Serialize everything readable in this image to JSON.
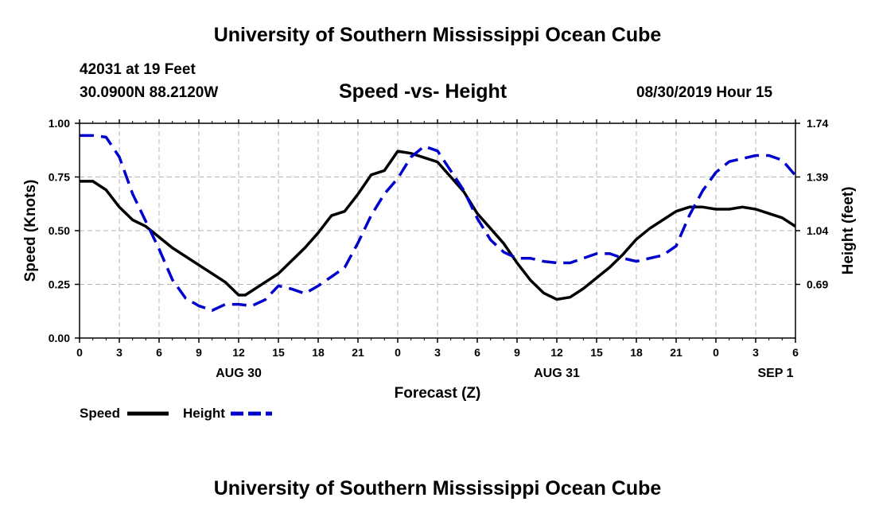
{
  "header": {
    "title": "University of Southern Mississippi Ocean Cube",
    "station": "42031 at 19 Feet",
    "coordinates": "30.0900N 88.2120W",
    "plot_title": "Speed -vs- Height",
    "datetime": "08/30/2019 Hour 15"
  },
  "footer": {
    "title": "University of Southern Mississippi Ocean Cube"
  },
  "colors": {
    "speed": "#000000",
    "height": "#0000cc",
    "grid": "#b4b4b4"
  },
  "chart_data": {
    "type": "line",
    "title": "Speed -vs- Height",
    "xlabel": "Forecast (Z)",
    "ylabel": "Speed (Knots)",
    "y2label": "Height (feet)",
    "xlim": [
      0,
      54
    ],
    "ylim": [
      0,
      1
    ],
    "y2lim": [
      0.34,
      1.74
    ],
    "x_ticks": [
      0,
      3,
      6,
      9,
      12,
      15,
      18,
      21,
      24,
      27,
      30,
      33,
      36,
      39,
      42,
      45,
      48,
      51,
      54
    ],
    "x_tick_labels": [
      "0",
      "3",
      "6",
      "9",
      "12",
      "15",
      "18",
      "21",
      "0",
      "3",
      "6",
      "9",
      "12",
      "15",
      "18",
      "21",
      "0",
      "3",
      "6"
    ],
    "date_labels": [
      {
        "x": 12,
        "label": "AUG 30"
      },
      {
        "x": 36,
        "label": "AUG 31"
      },
      {
        "x": 52.5,
        "label": "SEP 1"
      }
    ],
    "y_ticks": [
      0,
      0.25,
      0.5,
      0.75,
      1.0
    ],
    "y_tick_labels": [
      "0.00",
      "0.25",
      "0.50",
      "0.75",
      "1.00"
    ],
    "y2_ticks": [
      0.69,
      1.04,
      1.39,
      1.74
    ],
    "y2_tick_labels": [
      "0.69",
      "1.04",
      "1.39",
      "1.74"
    ],
    "grid": true,
    "series": [
      {
        "name": "Speed",
        "axis": "left",
        "style": "solid",
        "x": [
          0,
          1,
          2,
          3,
          4,
          5,
          6,
          7,
          8,
          9,
          10,
          11,
          12,
          12.5,
          13,
          14,
          15,
          16,
          17,
          18,
          19,
          20,
          21,
          22,
          23,
          24,
          25,
          26,
          27,
          28,
          29,
          30,
          31,
          32,
          33,
          34,
          35,
          36,
          37,
          38,
          39,
          40,
          41,
          42,
          43,
          44,
          45,
          46,
          47,
          48,
          49,
          50,
          51,
          52,
          53,
          54
        ],
        "values": [
          0.73,
          0.73,
          0.69,
          0.61,
          0.55,
          0.52,
          0.47,
          0.42,
          0.38,
          0.34,
          0.3,
          0.26,
          0.2,
          0.2,
          0.22,
          0.26,
          0.3,
          0.36,
          0.42,
          0.49,
          0.57,
          0.59,
          0.67,
          0.76,
          0.78,
          0.87,
          0.86,
          0.84,
          0.82,
          0.75,
          0.68,
          0.58,
          0.51,
          0.44,
          0.35,
          0.27,
          0.21,
          0.18,
          0.19,
          0.23,
          0.28,
          0.33,
          0.39,
          0.46,
          0.51,
          0.55,
          0.59,
          0.61,
          0.61,
          0.6,
          0.6,
          0.61,
          0.6,
          0.58,
          0.56,
          0.52
        ]
      },
      {
        "name": "Height",
        "axis": "right",
        "style": "dashed",
        "x": [
          0,
          1,
          2,
          3,
          4,
          5,
          6,
          7,
          8,
          9,
          10,
          11,
          12,
          13,
          14,
          15,
          16,
          17,
          18,
          19,
          20,
          21,
          22,
          23,
          24,
          25,
          26,
          27,
          28,
          29,
          30,
          31,
          32,
          33,
          34,
          35,
          36,
          37,
          38,
          39,
          40,
          41,
          42,
          43,
          44,
          45,
          46,
          47,
          48,
          49,
          50,
          51,
          52,
          53,
          54
        ],
        "values": [
          1.66,
          1.66,
          1.65,
          1.52,
          1.28,
          1.1,
          0.92,
          0.72,
          0.6,
          0.55,
          0.52,
          0.56,
          0.56,
          0.55,
          0.59,
          0.68,
          0.66,
          0.63,
          0.68,
          0.74,
          0.8,
          0.96,
          1.14,
          1.28,
          1.38,
          1.52,
          1.59,
          1.56,
          1.43,
          1.3,
          1.12,
          0.98,
          0.9,
          0.86,
          0.86,
          0.84,
          0.83,
          0.83,
          0.86,
          0.89,
          0.89,
          0.86,
          0.84,
          0.86,
          0.88,
          0.94,
          1.14,
          1.3,
          1.42,
          1.49,
          1.51,
          1.53,
          1.53,
          1.5,
          1.4
        ]
      }
    ],
    "legend": {
      "position": "bottom-left",
      "entries": [
        {
          "label": "Speed",
          "style": "solid"
        },
        {
          "label": "Height",
          "style": "dashed"
        }
      ]
    }
  }
}
